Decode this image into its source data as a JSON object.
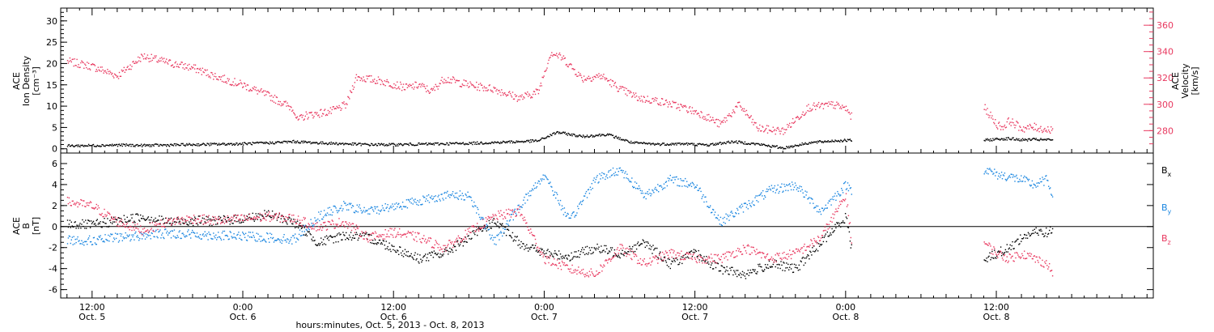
{
  "colors": {
    "black": "#000000",
    "pink": "#e8385f",
    "blue": "#1a86e0"
  },
  "xaxis": {
    "title": "hours:minutes, Oct.  5, 2013 - Oct.  8, 2013",
    "range_hours": [
      -2.5,
      84.5
    ],
    "ticks": [
      {
        "hour": 0,
        "time": "12:00",
        "date": "Oct. 5"
      },
      {
        "hour": 12,
        "time": "0:00",
        "date": "Oct. 6"
      },
      {
        "hour": 24,
        "time": "12:00",
        "date": "Oct. 6"
      },
      {
        "hour": 36,
        "time": "0:00",
        "date": "Oct. 7"
      },
      {
        "hour": 48,
        "time": "12:00",
        "date": "Oct. 7"
      },
      {
        "hour": 60,
        "time": "0:00",
        "date": "Oct. 8"
      },
      {
        "hour": 72,
        "time": "12:00",
        "date": "Oct. 8"
      }
    ]
  },
  "chart_data": [
    {
      "type": "scatter",
      "panel": "top",
      "ylabel_lines": [
        "ACE",
        "Ion Density",
        "[cm⁻³]"
      ],
      "y2label_lines": [
        "ACE",
        "Velocity",
        "[km/s]"
      ],
      "ylim": [
        -1,
        33
      ],
      "y_ticks": [
        0,
        5,
        10,
        15,
        20,
        25,
        30
      ],
      "y2lim": [
        263,
        373
      ],
      "y2_ticks": [
        280,
        300,
        320,
        340,
        360
      ],
      "series": [
        {
          "axis": "right",
          "color": "#e8385f",
          "x": [
            -2,
            0,
            2,
            4,
            6,
            8,
            10,
            12,
            14,
            16,
            16.3,
            17,
            19,
            20.2,
            21,
            23,
            25,
            26,
            27,
            28,
            30,
            32,
            33.7,
            34,
            35.5,
            36.5,
            37.5,
            39,
            40.5,
            42,
            43.5,
            45,
            47,
            48.5,
            50,
            51.5,
            53,
            55,
            57,
            59,
            60,
            60.5
          ],
          "y": [
            333,
            329,
            322,
            337,
            332,
            328,
            321,
            315,
            307,
            297,
            288,
            292,
            295,
            300,
            321,
            318,
            313,
            315,
            310,
            320,
            315,
            312,
            306,
            305,
            310,
            340,
            335,
            320,
            322,
            312,
            305,
            303,
            298,
            293,
            285,
            300,
            282,
            280,
            298,
            300,
            297,
            290
          ]
        },
        {
          "axis": "right",
          "color": "#e8385f",
          "x": [
            71,
            72,
            72.5,
            73,
            74,
            75,
            76,
            76.5
          ],
          "y": [
            298,
            285,
            283,
            288,
            282,
            283,
            281,
            282
          ]
        },
        {
          "axis": "left",
          "color": "#000000",
          "x": [
            -2,
            0,
            2,
            4,
            6,
            8,
            10,
            12,
            14,
            16,
            18,
            20,
            22,
            24,
            26,
            28,
            30,
            32,
            34,
            35.5,
            37,
            39,
            41,
            43,
            45,
            47,
            49,
            51,
            53,
            55,
            57,
            59,
            60.5
          ],
          "y": [
            0.8,
            0.9,
            1.0,
            0.9,
            1.0,
            1.1,
            1.2,
            1.3,
            1.5,
            1.8,
            1.5,
            1.3,
            1.1,
            1.1,
            1.2,
            1.3,
            1.4,
            1.6,
            1.8,
            2.0,
            4.0,
            3.0,
            3.5,
            1.5,
            1.2,
            1.3,
            1.0,
            1.8,
            1.2,
            0.3,
            1.5,
            2.0,
            2.1
          ]
        },
        {
          "axis": "left",
          "color": "#000000",
          "x": [
            71,
            72,
            73,
            74,
            75,
            76,
            76.5
          ],
          "y": [
            2.1,
            2.4,
            2.5,
            2.2,
            2.3,
            2.2,
            2.3
          ]
        }
      ]
    },
    {
      "type": "scatter",
      "panel": "bottom",
      "ylabel_lines": [
        "ACE",
        "B",
        "[nT]"
      ],
      "ylim": [
        -6.8,
        7.0
      ],
      "y_ticks": [
        -6,
        -4,
        -2,
        0,
        2,
        4,
        6
      ],
      "legend": [
        {
          "base": "B",
          "sub": "x",
          "color": "#000000"
        },
        {
          "base": "B",
          "sub": "y",
          "color": "#1a86e0"
        },
        {
          "base": "B",
          "sub": "z",
          "color": "#e8385f"
        }
      ],
      "series": [
        {
          "name": "Bx",
          "color": "#000000",
          "x": [
            -2,
            0,
            2,
            4,
            6,
            8,
            10,
            12,
            14,
            16,
            18,
            20,
            22,
            24,
            26,
            28,
            30,
            32,
            34,
            36,
            38,
            40,
            42,
            44,
            46,
            48,
            50,
            52,
            54,
            56,
            58,
            60,
            60.5
          ],
          "y": [
            0.3,
            0.2,
            0.6,
            1.0,
            0.5,
            0.6,
            0.6,
            0.8,
            1.2,
            0.5,
            -1.5,
            -0.8,
            -1.0,
            -2.0,
            -3.0,
            -2.5,
            -1.0,
            0.5,
            -1.5,
            -2.5,
            -2.8,
            -2.0,
            -2.5,
            -1.5,
            -3.5,
            -2.5,
            -4.0,
            -4.5,
            -3.5,
            -4.0,
            -1.5,
            1.0,
            -2.5
          ]
        },
        {
          "name": "Bx",
          "color": "#000000",
          "x": [
            71,
            72,
            73,
            74,
            75,
            76,
            76.5
          ],
          "y": [
            -3.0,
            -2.5,
            -2.0,
            -1.0,
            -0.5,
            -0.5,
            -0.3
          ]
        },
        {
          "name": "By",
          "color": "#1a86e0",
          "x": [
            -2,
            0,
            2,
            4,
            6,
            8,
            10,
            12,
            14,
            16,
            18,
            20,
            22,
            24,
            26,
            28,
            30,
            32,
            34,
            36,
            38,
            40,
            42,
            44,
            46,
            48,
            50,
            52,
            54,
            56,
            58,
            60,
            60.5
          ],
          "y": [
            -1.2,
            -1.3,
            -1.0,
            -0.8,
            -0.6,
            -0.7,
            -0.8,
            -0.9,
            -1.0,
            -1.2,
            1.0,
            2.0,
            1.5,
            2.0,
            2.5,
            3.0,
            3.0,
            -1.5,
            2.0,
            5.0,
            0.5,
            4.5,
            5.5,
            3.0,
            4.5,
            4.0,
            0.5,
            2.0,
            3.5,
            4.0,
            1.5,
            4.0,
            3.5
          ]
        },
        {
          "name": "By",
          "color": "#1a86e0",
          "x": [
            71,
            72,
            73,
            74,
            75,
            76,
            76.5
          ],
          "y": [
            5.5,
            5.0,
            4.8,
            4.5,
            4.0,
            4.5,
            3.0
          ]
        },
        {
          "name": "Bz",
          "color": "#e8385f",
          "x": [
            -2,
            0,
            2,
            4,
            6,
            8,
            10,
            12,
            14,
            16,
            18,
            20,
            22,
            24,
            26,
            28,
            30,
            32,
            34,
            36,
            38,
            40,
            42,
            44,
            46,
            48,
            50,
            52,
            54,
            56,
            58,
            60,
            60.5
          ],
          "y": [
            2.4,
            2.0,
            0.5,
            -0.3,
            0.5,
            0.8,
            0.6,
            0.8,
            1.0,
            0.8,
            0.0,
            0.5,
            -1.0,
            -0.5,
            -1.0,
            -2.0,
            -0.5,
            1.0,
            1.5,
            -3.0,
            -4.0,
            -4.5,
            -2.0,
            -3.5,
            -2.5,
            -3.0,
            -3.0,
            -2.0,
            -3.0,
            -2.5,
            -1.0,
            3.0,
            -1.8
          ]
        },
        {
          "name": "Bz",
          "color": "#e8385f",
          "x": [
            71,
            72,
            73,
            74,
            75,
            76,
            76.5
          ],
          "y": [
            -1.5,
            -2.5,
            -3.0,
            -2.5,
            -3.0,
            -3.5,
            -4.5
          ]
        }
      ]
    }
  ]
}
